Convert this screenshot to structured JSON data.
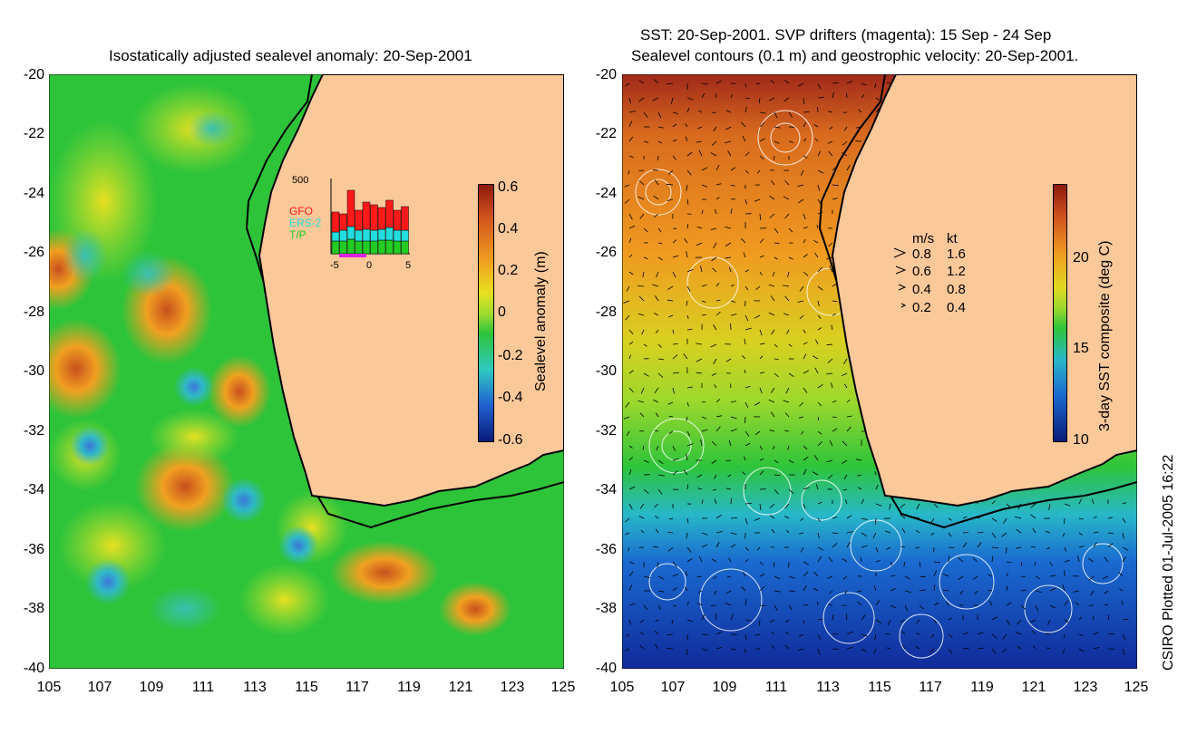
{
  "left_panel": {
    "title": "Isostatically adjusted sealevel anomaly: 20-Sep-2001",
    "y_ticks": [
      "-20",
      "-22",
      "-24",
      "-26",
      "-28",
      "-30",
      "-32",
      "-34",
      "-36",
      "-38",
      "-40"
    ],
    "x_ticks": [
      "105",
      "107",
      "109",
      "111",
      "113",
      "115",
      "117",
      "119",
      "121",
      "123",
      "125"
    ],
    "colorbar": {
      "label": "Sealevel anomaly (m)",
      "ticks": [
        "0.6",
        "0.4",
        "0.2",
        "0",
        "-0.2",
        "-0.4",
        "-0.6"
      ]
    },
    "inset": {
      "ymax_label": "500",
      "legend": [
        "GFO",
        "ERS-2",
        "T/P"
      ],
      "x_ticks": [
        "-5",
        "0",
        "5"
      ],
      "colors": {
        "gfo": "#ff1a1a",
        "ers": "#22dddd",
        "tp": "#22cc22"
      }
    }
  },
  "right_panel": {
    "title_line1": "SST: 20-Sep-2001. SVP drifters (magenta): 15 Sep - 24 Sep",
    "title_line2": "Sealevel contours (0.1 m) and geostrophic velocity: 20-Sep-2001.",
    "y_ticks": [
      "-20",
      "-22",
      "-24",
      "-26",
      "-28",
      "-30",
      "-32",
      "-34",
      "-36",
      "-38",
      "-40"
    ],
    "x_ticks": [
      "105",
      "107",
      "109",
      "111",
      "113",
      "115",
      "117",
      "119",
      "121",
      "123",
      "125"
    ],
    "colorbar": {
      "label": "3-day SST composite (deg C)",
      "ticks": [
        "20",
        "15",
        "10"
      ]
    },
    "velocity_legend": {
      "header_ms": "m/s",
      "header_kt": "kt",
      "rows": [
        {
          "ms": "0.8",
          "kt": "1.6"
        },
        {
          "ms": "0.6",
          "kt": "1.2"
        },
        {
          "ms": "0.4",
          "kt": "0.8"
        },
        {
          "ms": "0.2",
          "kt": "0.4"
        }
      ]
    }
  },
  "footer": "CSIRO Plotted 01-Jul-2005 16:22",
  "colors": {
    "land": "#fbc89a",
    "ocean_green": "#2ec43a"
  }
}
